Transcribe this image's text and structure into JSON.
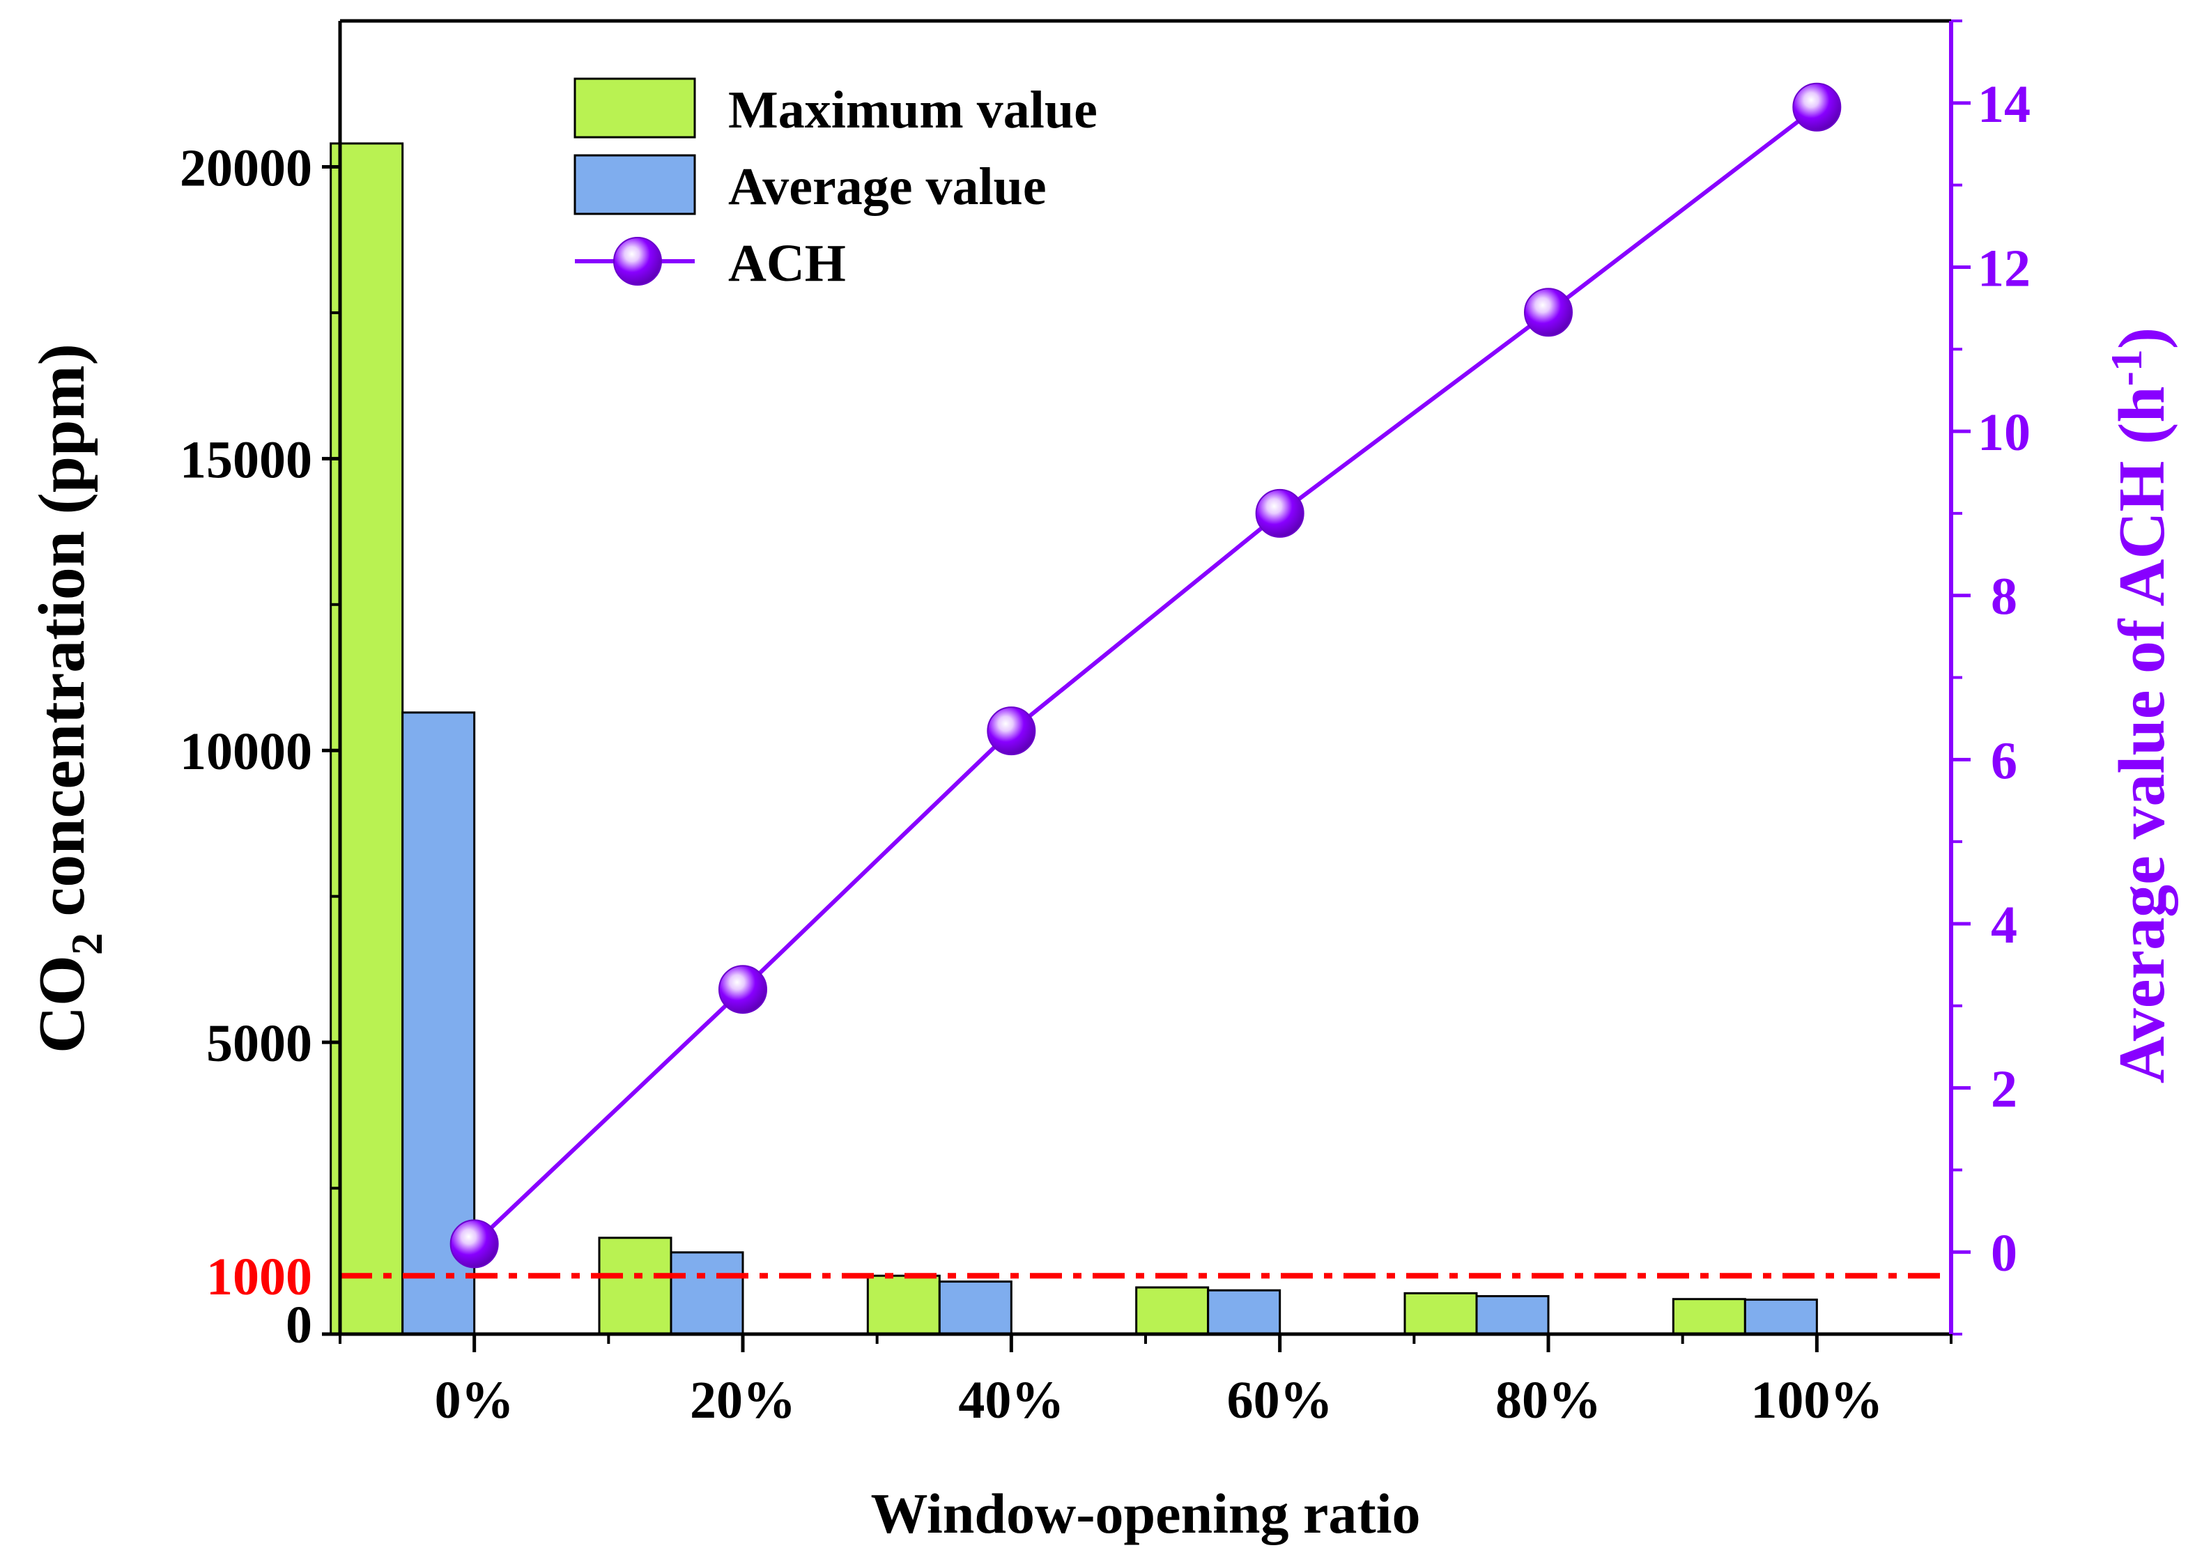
{
  "chart_data": {
    "type": "bar+line",
    "categories": [
      "0%",
      "20%",
      "40%",
      "60%",
      "80%",
      "100%"
    ],
    "xlabel": "Window-opening ratio",
    "ylabel_left": {
      "main": "CO",
      "sub": "2",
      "rest": " concentration (ppm)"
    },
    "ylabel_right": {
      "main": "Average value of ACH (h",
      "sup": "-1",
      "rest": ")"
    },
    "ylim_left": [
      0,
      22500
    ],
    "ylim_right": [
      -1.0,
      15.0
    ],
    "left_ticks": [
      "0",
      "5000",
      "10000",
      "15000",
      "20000"
    ],
    "left_tick_values": [
      0,
      5000,
      10000,
      15000,
      20000
    ],
    "right_ticks": [
      "0",
      "2",
      "4",
      "6",
      "8",
      "10",
      "12",
      "14"
    ],
    "right_tick_values": [
      0,
      2,
      4,
      6,
      8,
      10,
      12,
      14
    ],
    "threshold": {
      "value": 1000,
      "label": "1000",
      "color": "#ff0000"
    },
    "series": [
      {
        "name": "Maximum value",
        "type": "bar",
        "axis": "left",
        "color": "#b9f252",
        "values": [
          20400,
          1650,
          1000,
          800,
          700,
          600
        ]
      },
      {
        "name": "Average value",
        "type": "bar",
        "axis": "left",
        "color": "#7fadee",
        "values": [
          10650,
          1400,
          900,
          750,
          650,
          590
        ]
      },
      {
        "name": "ACH",
        "type": "line",
        "axis": "right",
        "color": "#8800ff",
        "values": [
          0.1,
          3.2,
          6.35,
          9.0,
          11.45,
          13.95
        ]
      }
    ],
    "legend": [
      "Maximum value",
      "Average value",
      "ACH"
    ],
    "legend_position": "top-left",
    "colors": {
      "axis_left": "#000000",
      "axis_right": "#8800ff",
      "threshold": "#ff0000"
    }
  }
}
